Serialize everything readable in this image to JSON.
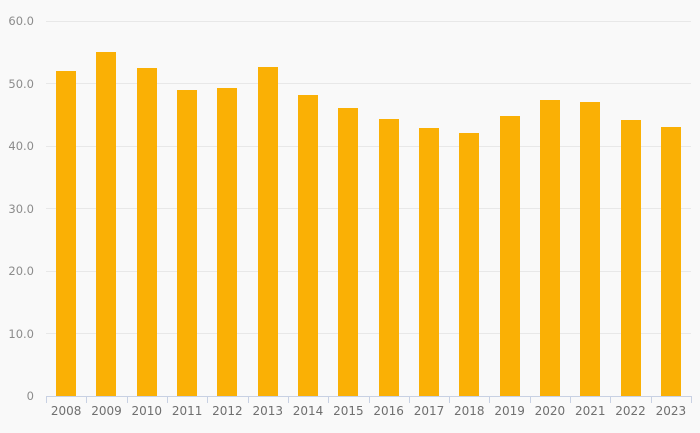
{
  "chart_data": {
    "type": "bar",
    "title": "",
    "xlabel": "",
    "ylabel": "",
    "categories": [
      "2008",
      "2009",
      "2010",
      "2011",
      "2012",
      "2013",
      "2014",
      "2015",
      "2016",
      "2017",
      "2018",
      "2019",
      "2020",
      "2021",
      "2022",
      "2023"
    ],
    "values": [
      52.0,
      55.0,
      52.5,
      49.0,
      49.3,
      52.6,
      48.2,
      46.1,
      44.3,
      42.9,
      42.1,
      44.8,
      47.4,
      47.1,
      44.1,
      43.0
    ],
    "ylim": [
      0,
      60
    ],
    "yticks": [
      {
        "value": 0,
        "label": "0"
      },
      {
        "value": 10,
        "label": "10.0"
      },
      {
        "value": 20,
        "label": "20.0"
      },
      {
        "value": 30,
        "label": "30.0"
      },
      {
        "value": 40,
        "label": "40.0"
      },
      {
        "value": 50,
        "label": "50.0"
      },
      {
        "value": 60,
        "label": "60.0"
      }
    ],
    "grid": "horizontal",
    "legend": "none",
    "colors": {
      "bar": "#FAB005",
      "background": "#f9f9f9",
      "gridline": "#e8e8e8",
      "axis_line": "#c8d1e3",
      "y_label_text": "#8c8c8c",
      "x_label_text": "#6f6f6f"
    }
  }
}
